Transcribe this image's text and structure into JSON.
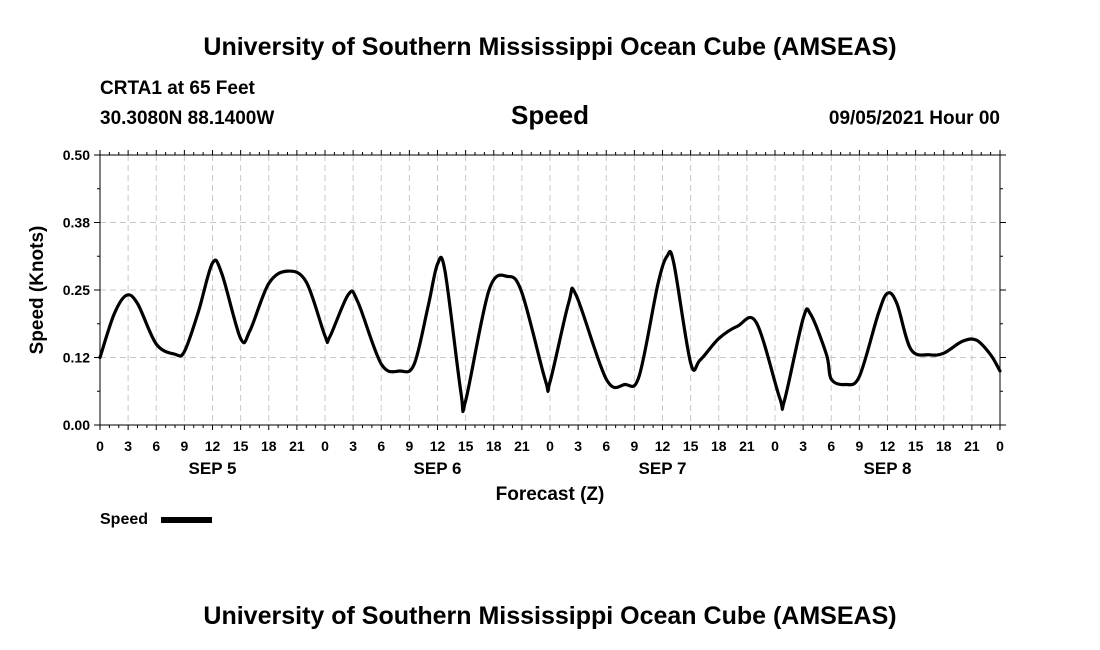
{
  "header": {
    "title_top": "University of Southern Mississippi Ocean Cube (AMSEAS)",
    "station": "CRTA1 at 65 Feet",
    "position": "30.3080N  88.1400W",
    "variable": "Speed",
    "datetime": "09/05/2021 Hour 00"
  },
  "footer": {
    "title_bottom": "University of Southern Mississippi Ocean Cube (AMSEAS)"
  },
  "legend": {
    "label": "Speed",
    "color": "#000000"
  },
  "chart_data": {
    "type": "line",
    "title": "Speed",
    "xlabel": "Forecast (Z)",
    "ylabel": "Speed (Knots)",
    "ylim": [
      0,
      0.5
    ],
    "xlim": [
      0,
      96
    ],
    "grid": true,
    "y_ticks": [
      "0.00",
      "0.12",
      "0.25",
      "0.38",
      "0.50"
    ],
    "x_ticks": [
      "0",
      "3",
      "6",
      "9",
      "12",
      "15",
      "18",
      "21",
      "0",
      "3",
      "6",
      "9",
      "12",
      "15",
      "18",
      "21",
      "0",
      "3",
      "6",
      "9",
      "12",
      "15",
      "18",
      "21",
      "0",
      "3",
      "6",
      "9",
      "12",
      "15",
      "18",
      "21",
      "0"
    ],
    "day_labels": [
      {
        "label": "SEP 5",
        "hour": 12
      },
      {
        "label": "SEP 6",
        "hour": 36
      },
      {
        "label": "SEP 7",
        "hour": 60
      },
      {
        "label": "SEP 8",
        "hour": 84
      }
    ],
    "series": [
      {
        "name": "Speed",
        "color": "#000000",
        "points": [
          [
            0,
            0.125
          ],
          [
            1.5,
            0.205
          ],
          [
            2.8,
            0.24
          ],
          [
            4,
            0.225
          ],
          [
            6,
            0.15
          ],
          [
            8,
            0.131
          ],
          [
            9,
            0.136
          ],
          [
            10.5,
            0.21
          ],
          [
            12,
            0.3
          ],
          [
            13,
            0.28
          ],
          [
            15,
            0.16
          ],
          [
            16,
            0.175
          ],
          [
            18,
            0.262
          ],
          [
            20,
            0.285
          ],
          [
            22,
            0.265
          ],
          [
            24,
            0.165
          ],
          [
            24.5,
            0.163
          ],
          [
            26.5,
            0.242
          ],
          [
            27.5,
            0.228
          ],
          [
            30,
            0.113
          ],
          [
            32,
            0.1
          ],
          [
            33.5,
            0.112
          ],
          [
            35,
            0.22
          ],
          [
            36,
            0.298
          ],
          [
            36.8,
            0.285
          ],
          [
            38.5,
            0.06
          ],
          [
            39,
            0.045
          ],
          [
            41.5,
            0.25
          ],
          [
            43.5,
            0.275
          ],
          [
            45,
            0.245
          ],
          [
            47.5,
            0.083
          ],
          [
            48,
            0.08
          ],
          [
            50,
            0.227
          ],
          [
            50.8,
            0.24
          ],
          [
            54,
            0.085
          ],
          [
            56,
            0.075
          ],
          [
            57.5,
            0.09
          ],
          [
            59.5,
            0.26
          ],
          [
            60.5,
            0.313
          ],
          [
            61.2,
            0.3
          ],
          [
            63,
            0.115
          ],
          [
            64,
            0.12
          ],
          [
            66,
            0.16
          ],
          [
            68,
            0.183
          ],
          [
            70,
            0.19
          ],
          [
            72.5,
            0.05
          ],
          [
            73,
            0.045
          ],
          [
            75,
            0.197
          ],
          [
            75.8,
            0.205
          ],
          [
            77.5,
            0.13
          ],
          [
            78,
            0.085
          ],
          [
            79.5,
            0.075
          ],
          [
            81,
            0.09
          ],
          [
            83,
            0.205
          ],
          [
            84,
            0.244
          ],
          [
            85,
            0.225
          ],
          [
            86.5,
            0.14
          ],
          [
            88.5,
            0.13
          ],
          [
            90,
            0.133
          ],
          [
            92,
            0.155
          ],
          [
            93.5,
            0.157
          ],
          [
            95,
            0.13
          ],
          [
            96,
            0.1
          ]
        ]
      }
    ]
  }
}
